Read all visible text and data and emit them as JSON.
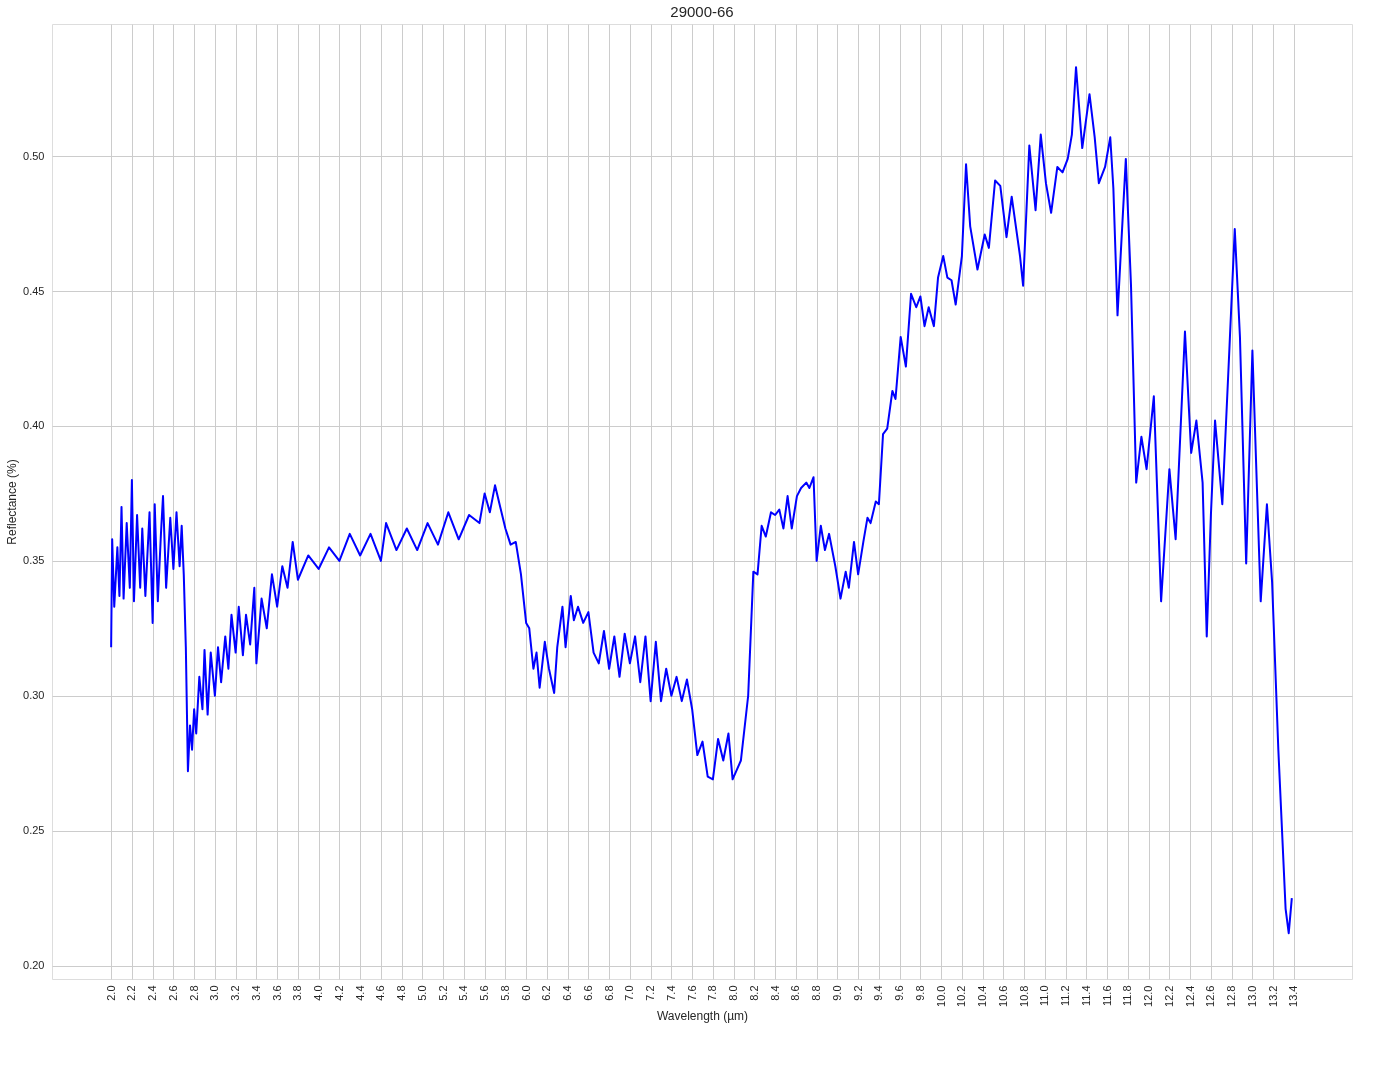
{
  "chart_data": {
    "type": "line",
    "title": "29000-66",
    "xlabel": "Wavelength (µm)",
    "ylabel": "Reflectance (%)",
    "xlim": [
      1.43,
      13.96
    ],
    "ylim": [
      0.195,
      0.549
    ],
    "xticks": [
      {
        "value": 2,
        "label": "2.0"
      },
      2.2,
      2.4,
      2.6,
      2.8,
      {
        "value": 3,
        "label": "3.0"
      },
      3.2,
      3.4,
      3.6,
      3.8,
      {
        "value": 4,
        "label": "4.0"
      },
      4.2,
      4.4,
      4.6,
      4.8,
      {
        "value": 5,
        "label": "5.0"
      },
      5.2,
      5.4,
      5.6,
      5.8,
      {
        "value": 6,
        "label": "6.0"
      },
      6.2,
      6.4,
      6.6,
      6.8,
      {
        "value": 7,
        "label": "7.0"
      },
      7.2,
      7.4,
      7.6,
      7.8,
      {
        "value": 8,
        "label": "8.0"
      },
      8.2,
      8.4,
      8.6,
      8.8,
      {
        "value": 9,
        "label": "9.0"
      },
      9.2,
      9.4,
      9.6,
      9.8,
      {
        "value": 10,
        "label": "10.0"
      },
      10.2,
      10.4,
      10.6,
      10.8,
      {
        "value": 11,
        "label": "11.0"
      },
      11.2,
      11.4,
      11.6,
      11.8,
      {
        "value": 12,
        "label": "12.0"
      },
      12.2,
      12.4,
      12.6,
      12.8,
      {
        "value": 13,
        "label": "13.0"
      },
      13.2,
      13.4
    ],
    "yticks": [
      {
        "value": 0.2,
        "label": "0.20"
      },
      0.25,
      {
        "value": 0.3,
        "label": "0.30"
      },
      0.35,
      {
        "value": 0.4,
        "label": "0.40"
      },
      0.45,
      {
        "value": 0.5,
        "label": "0.50"
      }
    ],
    "grid": true,
    "legend": false,
    "marker": "none",
    "line_style": "solid",
    "series": [
      {
        "color": "#0000ff",
        "x": [
          2.0,
          2.01,
          2.03,
          2.06,
          2.08,
          2.1,
          2.12,
          2.15,
          2.18,
          2.2,
          2.22,
          2.25,
          2.28,
          2.3,
          2.33,
          2.37,
          2.4,
          2.42,
          2.45,
          2.48,
          2.5,
          2.53,
          2.57,
          2.6,
          2.63,
          2.66,
          2.68,
          2.7,
          2.72,
          2.74,
          2.76,
          2.78,
          2.8,
          2.82,
          2.85,
          2.88,
          2.9,
          2.93,
          2.96,
          3.0,
          3.03,
          3.06,
          3.1,
          3.13,
          3.16,
          3.2,
          3.23,
          3.27,
          3.3,
          3.34,
          3.38,
          3.4,
          3.45,
          3.5,
          3.55,
          3.6,
          3.65,
          3.7,
          3.75,
          3.8,
          3.9,
          4.0,
          4.1,
          4.2,
          4.3,
          4.4,
          4.5,
          4.6,
          4.65,
          4.75,
          4.85,
          4.95,
          5.05,
          5.15,
          5.25,
          5.35,
          5.45,
          5.55,
          5.6,
          5.65,
          5.7,
          5.75,
          5.8,
          5.85,
          5.9,
          5.95,
          6.0,
          6.03,
          6.07,
          6.1,
          6.13,
          6.18,
          6.22,
          6.27,
          6.3,
          6.35,
          6.38,
          6.43,
          6.46,
          6.5,
          6.55,
          6.6,
          6.65,
          6.7,
          6.75,
          6.8,
          6.85,
          6.9,
          6.95,
          7.0,
          7.05,
          7.1,
          7.15,
          7.2,
          7.25,
          7.3,
          7.35,
          7.4,
          7.45,
          7.5,
          7.55,
          7.6,
          7.65,
          7.7,
          7.75,
          7.8,
          7.85,
          7.9,
          7.95,
          7.99,
          8.07,
          8.14,
          8.19,
          8.23,
          8.27,
          8.31,
          8.36,
          8.4,
          8.44,
          8.48,
          8.52,
          8.56,
          8.61,
          8.65,
          8.7,
          8.73,
          8.77,
          8.8,
          8.84,
          8.88,
          8.92,
          8.98,
          9.03,
          9.08,
          9.11,
          9.16,
          9.2,
          9.25,
          9.29,
          9.32,
          9.37,
          9.4,
          9.44,
          9.48,
          9.53,
          9.56,
          9.61,
          9.66,
          9.71,
          9.76,
          9.8,
          9.84,
          9.88,
          9.93,
          9.97,
          10.02,
          10.06,
          10.1,
          10.14,
          10.2,
          10.24,
          10.28,
          10.35,
          10.42,
          10.46,
          10.52,
          10.57,
          10.63,
          10.68,
          10.76,
          10.79,
          10.85,
          10.91,
          10.96,
          11.01,
          11.06,
          11.12,
          11.17,
          11.22,
          11.26,
          11.3,
          11.36,
          11.43,
          11.48,
          11.52,
          11.58,
          11.63,
          11.66,
          11.7,
          11.73,
          11.78,
          11.83,
          11.88,
          11.93,
          11.98,
          12.05,
          12.12,
          12.2,
          12.26,
          12.35,
          12.41,
          12.46,
          12.52,
          12.56,
          12.6,
          12.64,
          12.71,
          12.78,
          12.83,
          12.88,
          12.94,
          13.0,
          13.08,
          13.14,
          13.19,
          13.25,
          13.32,
          13.35,
          13.38
        ],
        "values": [
          0.318,
          0.358,
          0.333,
          0.355,
          0.337,
          0.37,
          0.336,
          0.364,
          0.34,
          0.38,
          0.335,
          0.367,
          0.34,
          0.362,
          0.337,
          0.368,
          0.327,
          0.371,
          0.335,
          0.36,
          0.374,
          0.34,
          0.366,
          0.347,
          0.368,
          0.348,
          0.363,
          0.345,
          0.318,
          0.272,
          0.289,
          0.28,
          0.295,
          0.286,
          0.307,
          0.295,
          0.317,
          0.293,
          0.316,
          0.3,
          0.318,
          0.305,
          0.322,
          0.31,
          0.33,
          0.316,
          0.333,
          0.315,
          0.33,
          0.319,
          0.34,
          0.312,
          0.336,
          0.325,
          0.345,
          0.333,
          0.348,
          0.34,
          0.357,
          0.343,
          0.352,
          0.347,
          0.355,
          0.35,
          0.36,
          0.352,
          0.36,
          0.35,
          0.364,
          0.354,
          0.362,
          0.354,
          0.364,
          0.356,
          0.368,
          0.358,
          0.367,
          0.364,
          0.375,
          0.368,
          0.378,
          0.37,
          0.362,
          0.356,
          0.357,
          0.345,
          0.327,
          0.325,
          0.31,
          0.316,
          0.303,
          0.32,
          0.31,
          0.301,
          0.318,
          0.333,
          0.318,
          0.337,
          0.328,
          0.333,
          0.327,
          0.331,
          0.316,
          0.312,
          0.324,
          0.31,
          0.322,
          0.307,
          0.323,
          0.312,
          0.322,
          0.305,
          0.322,
          0.298,
          0.32,
          0.298,
          0.31,
          0.3,
          0.307,
          0.298,
          0.306,
          0.295,
          0.278,
          0.283,
          0.27,
          0.269,
          0.284,
          0.276,
          0.286,
          0.269,
          0.276,
          0.3,
          0.346,
          0.345,
          0.363,
          0.359,
          0.368,
          0.367,
          0.369,
          0.362,
          0.374,
          0.362,
          0.374,
          0.377,
          0.379,
          0.377,
          0.381,
          0.35,
          0.363,
          0.354,
          0.36,
          0.348,
          0.336,
          0.346,
          0.34,
          0.357,
          0.345,
          0.357,
          0.366,
          0.364,
          0.372,
          0.371,
          0.397,
          0.399,
          0.413,
          0.41,
          0.433,
          0.422,
          0.449,
          0.444,
          0.448,
          0.437,
          0.444,
          0.437,
          0.455,
          0.463,
          0.455,
          0.454,
          0.445,
          0.463,
          0.497,
          0.474,
          0.458,
          0.471,
          0.466,
          0.491,
          0.489,
          0.47,
          0.485,
          0.463,
          0.452,
          0.504,
          0.48,
          0.508,
          0.49,
          0.479,
          0.496,
          0.494,
          0.499,
          0.508,
          0.533,
          0.503,
          0.523,
          0.507,
          0.49,
          0.496,
          0.507,
          0.488,
          0.441,
          0.463,
          0.499,
          0.452,
          0.379,
          0.396,
          0.384,
          0.411,
          0.335,
          0.384,
          0.358,
          0.435,
          0.39,
          0.402,
          0.379,
          0.322,
          0.367,
          0.402,
          0.371,
          0.43,
          0.473,
          0.433,
          0.349,
          0.428,
          0.335,
          0.371,
          0.342,
          0.28,
          0.221,
          0.212,
          0.225
        ]
      }
    ]
  }
}
